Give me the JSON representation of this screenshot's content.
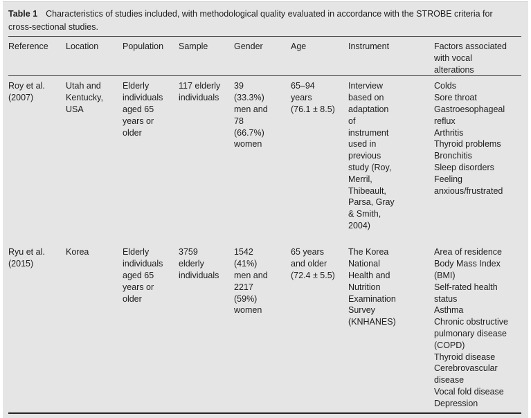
{
  "table": {
    "caption_label": "Table 1",
    "caption_text": "Characteristics of studies included, with methodological quality evaluated in accordance with the STROBE criteria for\ncross-sectional studies.",
    "columns": [
      "Reference",
      "Location",
      "Population",
      "Sample",
      "Gender",
      "Age",
      "Instrument",
      "Factors associated\nwith vocal\nalterations"
    ],
    "rows": [
      {
        "reference": "Roy et al.\n(2007)",
        "location": "Utah and\nKentucky,\nUSA",
        "population": "Elderly\nindividuals\naged 65\nyears or\nolder",
        "sample": "117 elderly\nindividuals",
        "gender": "39\n(33.3%)\nmen and\n78\n(66.7%)\nwomen",
        "age": "65–94\nyears\n(76.1 ± 8.5)",
        "instrument": "Interview\nbased on\nadaptation\nof\ninstrument\nused in\nprevious\nstudy (Roy,\nMerril,\nThibeault,\nParsa, Gray\n& Smith,\n2004)",
        "factors": "Colds\nSore throat\nGastroesophageal\nreflux\nArthritis\nThyroid problems\nBronchitis\nSleep disorders\nFeeling\nanxious/frustrated"
      },
      {
        "reference": "Ryu et al.\n(2015)",
        "location": "Korea",
        "population": "Elderly\nindividuals\naged 65\nyears or\nolder",
        "sample": "3759\nelderly\nindividuals",
        "gender": "1542\n(41%)\nmen and\n2217\n(59%)\nwomen",
        "age": "65 years\nand older\n(72.4 ± 5.5)",
        "instrument": "The Korea\nNational\nHealth and\nNutrition\nExamination\nSurvey\n(KNHANES)",
        "factors": "Area of residence\nBody Mass Index\n(BMI)\nSelf-rated health\nstatus\nAsthma\nChronic obstructive\npulmonary disease\n(COPD)\nThyroid disease\nCerebrovascular\ndisease\nVocal fold disease\nDepression"
      }
    ],
    "colors": {
      "panel_bg": "#e5e5e6",
      "text": "#1e1e1e",
      "rule": "#3c3c3c"
    }
  }
}
